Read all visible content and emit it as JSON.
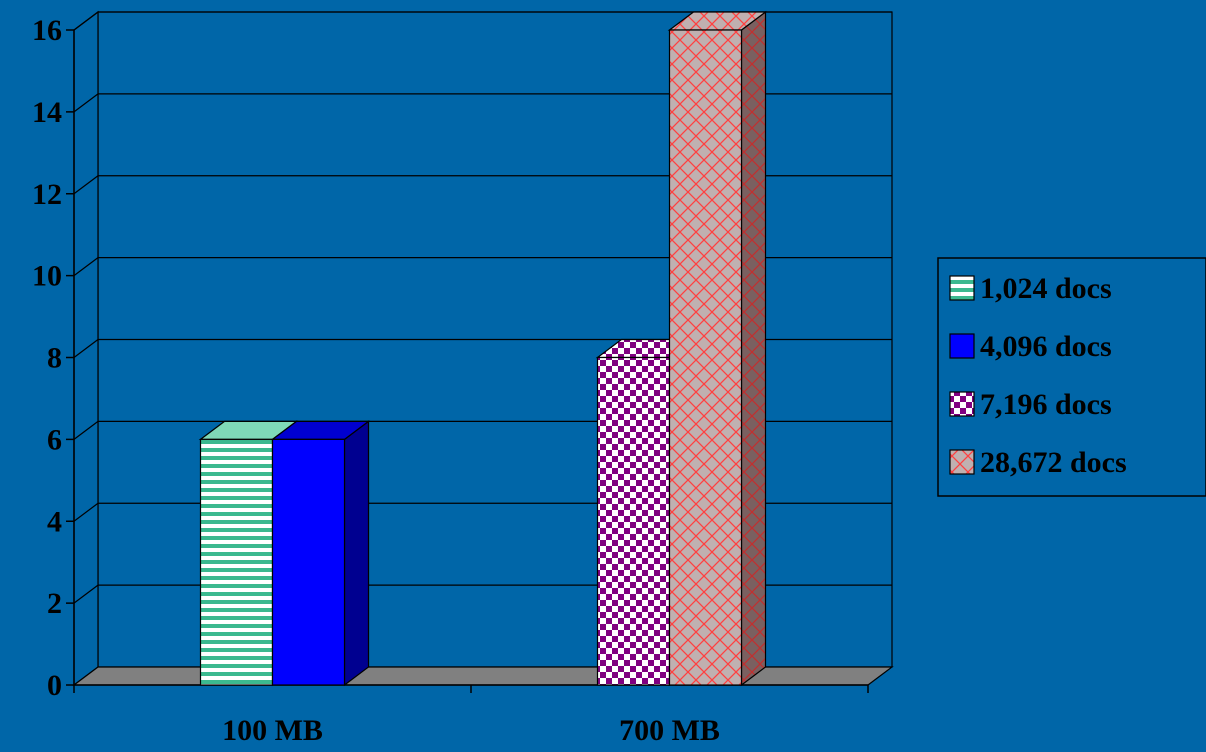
{
  "chart_data": {
    "type": "bar",
    "categories": [
      "100 MB",
      "700 MB"
    ],
    "series": [
      {
        "name": "1,024 docs",
        "values": [
          6,
          null
        ],
        "color": "#3CB98F",
        "pattern": "hstripe"
      },
      {
        "name": "4,096 docs",
        "values": [
          6,
          null
        ],
        "color": "#0000FF",
        "pattern": "solid"
      },
      {
        "name": "7,196 docs",
        "values": [
          null,
          8
        ],
        "color": "#800080",
        "pattern": "checker"
      },
      {
        "name": "28,672 docs",
        "values": [
          null,
          16
        ],
        "color": "#FF8080",
        "pattern": "crosshatch"
      }
    ],
    "ylim": [
      0,
      16
    ],
    "yticks": [
      0,
      2,
      4,
      6,
      8,
      10,
      12,
      14,
      16
    ],
    "grid": true,
    "legend_position": "right",
    "style": "3d-column"
  }
}
